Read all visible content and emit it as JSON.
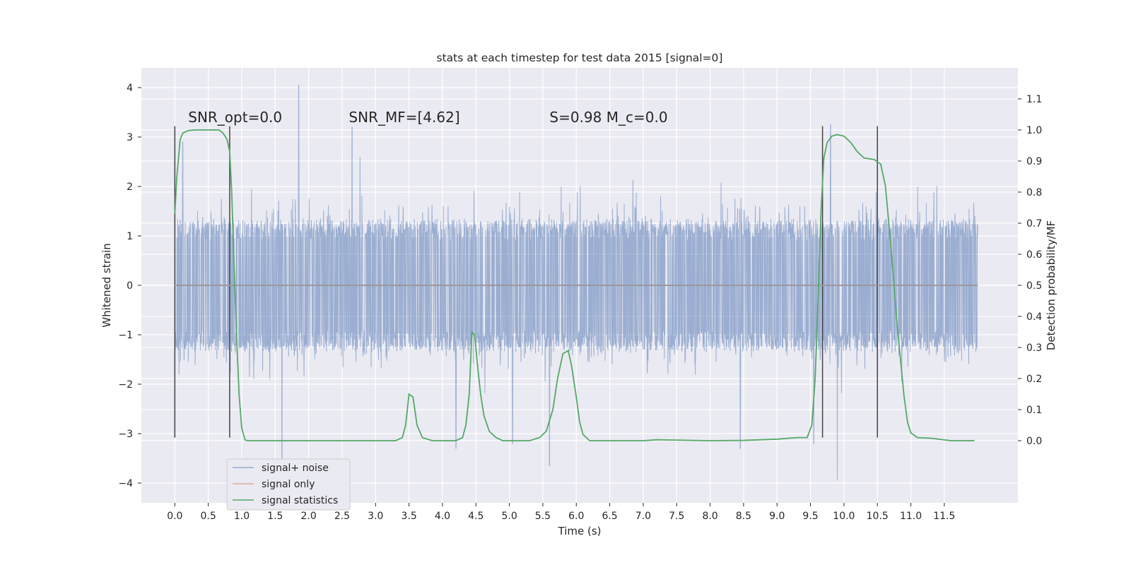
{
  "chart_data": {
    "type": "line",
    "title": "stats at each timestep for test data 2015 [signal=0]",
    "xlabel": "Time (s)",
    "ylabel": "Whitened strain",
    "y2label": "Detection probability/MF",
    "xlim": [
      -0.5,
      12.6
    ],
    "ylim": [
      -4.4,
      4.4
    ],
    "y2lim": [
      -0.2,
      1.2
    ],
    "xticks": [
      0.0,
      0.5,
      1.0,
      1.5,
      2.0,
      2.5,
      3.0,
      3.5,
      4.0,
      4.5,
      5.0,
      5.5,
      6.0,
      6.5,
      7.0,
      7.5,
      8.0,
      8.5,
      9.0,
      9.5,
      10.0,
      10.5,
      11.0,
      11.5
    ],
    "xtick_labels": [
      "0.0",
      "0.5",
      "1.0",
      "1.5",
      "2.0",
      "2.5",
      "3.0",
      "3.5",
      "4.0",
      "4.5",
      "5.0",
      "5.5",
      "6.0",
      "6.5",
      "7.0",
      "7.5",
      "8.0",
      "8.5",
      "9.0",
      "9.5",
      "10.0",
      "10.5",
      "11.0",
      "11.5"
    ],
    "yticks": [
      -4,
      -3,
      -2,
      -1,
      0,
      1,
      2,
      3,
      4
    ],
    "ytick_labels": [
      "−4",
      "−3",
      "−2",
      "−1",
      "0",
      "1",
      "2",
      "3",
      "4"
    ],
    "y2ticks": [
      0.0,
      0.1,
      0.2,
      0.3,
      0.4,
      0.5,
      0.6,
      0.7,
      0.8,
      0.9,
      1.0,
      1.1
    ],
    "y2tick_labels": [
      "0.0",
      "0.1",
      "0.2",
      "0.3",
      "0.4",
      "0.5",
      "0.6",
      "0.7",
      "0.8",
      "0.9",
      "1.0",
      "1.1"
    ],
    "grid": true,
    "legend_position": "lower-left",
    "annotations": [
      {
        "text": "SNR_opt=0.0",
        "x": 0.2,
        "y": 3.3
      },
      {
        "text": "SNR_MF=[4.62]",
        "x": 2.6,
        "y": 3.3
      },
      {
        "text": "S=0.98   M_c=0.0",
        "x": 5.6,
        "y": 3.3
      }
    ],
    "vertical_markers": [
      {
        "x": 0.0,
        "ymin": -3.08,
        "ymax": 3.22
      },
      {
        "x": 0.82,
        "ymin": -3.08,
        "ymax": 3.22
      },
      {
        "x": 9.68,
        "ymin": -3.08,
        "ymax": 3.22
      },
      {
        "x": 10.5,
        "ymin": -3.08,
        "ymax": 3.22
      }
    ],
    "series": [
      {
        "name": "signal+ noise",
        "color": "#4c72b0",
        "axis": "left",
        "kind": "noise",
        "x_range": [
          0.0,
          12.0
        ],
        "core_amplitude": 1.35,
        "peaks": [
          [
            0.0,
            -3.05
          ],
          [
            1.85,
            4.05
          ],
          [
            1.6,
            -3.5
          ],
          [
            4.2,
            -3.3
          ],
          [
            5.05,
            -3.2
          ],
          [
            5.6,
            -3.65
          ],
          [
            8.45,
            -3.3
          ],
          [
            9.8,
            3.25
          ],
          [
            9.9,
            -3.95
          ],
          [
            9.55,
            -3.2
          ],
          [
            2.65,
            3.2
          ],
          [
            0.12,
            2.9
          ]
        ]
      },
      {
        "name": "signal only",
        "color": "#dd8452",
        "axis": "left",
        "kind": "flat",
        "x": [
          0.0,
          12.0
        ],
        "values": [
          0.0,
          0.0
        ]
      },
      {
        "name": "signal statistics",
        "color": "#55a868",
        "axis": "right",
        "kind": "line",
        "x": [
          0.0,
          0.03,
          0.08,
          0.12,
          0.2,
          0.3,
          0.4,
          0.5,
          0.6,
          0.66,
          0.72,
          0.78,
          0.82,
          0.85,
          0.88,
          0.92,
          0.96,
          1.0,
          1.05,
          1.1,
          1.3,
          1.5,
          1.7,
          1.9,
          2.2,
          2.6,
          3.0,
          3.3,
          3.4,
          3.45,
          3.5,
          3.56,
          3.62,
          3.7,
          3.85,
          4.0,
          4.2,
          4.3,
          4.35,
          4.4,
          4.44,
          4.48,
          4.52,
          4.57,
          4.62,
          4.7,
          4.8,
          4.9,
          5.1,
          5.3,
          5.45,
          5.55,
          5.65,
          5.72,
          5.8,
          5.88,
          5.93,
          6.0,
          6.05,
          6.1,
          6.2,
          6.4,
          6.8,
          7.0,
          7.2,
          7.5,
          8.0,
          8.5,
          9.0,
          9.3,
          9.45,
          9.52,
          9.57,
          9.62,
          9.66,
          9.7,
          9.75,
          9.82,
          9.9,
          10.0,
          10.1,
          10.2,
          10.3,
          10.45,
          10.55,
          10.62,
          10.7,
          10.8,
          10.9,
          10.95,
          11.0,
          11.1,
          11.3,
          11.6,
          11.95
        ],
        "values": [
          0.73,
          0.85,
          0.97,
          0.99,
          0.998,
          1.0,
          1.0,
          1.0,
          1.0,
          1.0,
          0.99,
          0.97,
          0.93,
          0.8,
          0.6,
          0.35,
          0.15,
          0.04,
          0.002,
          0.0,
          0.0,
          0.0,
          0.0,
          0.0,
          0.0,
          0.0,
          0.0,
          0.0,
          0.01,
          0.05,
          0.15,
          0.14,
          0.05,
          0.01,
          0.0,
          0.0,
          0.0,
          0.01,
          0.05,
          0.15,
          0.35,
          0.34,
          0.25,
          0.15,
          0.08,
          0.03,
          0.01,
          0.0,
          0.0,
          0.0,
          0.01,
          0.03,
          0.1,
          0.2,
          0.28,
          0.29,
          0.24,
          0.14,
          0.06,
          0.02,
          0.0,
          0.0,
          0.0,
          0.0,
          0.003,
          0.002,
          0.0,
          0.001,
          0.005,
          0.01,
          0.01,
          0.05,
          0.2,
          0.5,
          0.75,
          0.91,
          0.96,
          0.98,
          0.985,
          0.98,
          0.96,
          0.93,
          0.91,
          0.905,
          0.89,
          0.82,
          0.63,
          0.36,
          0.14,
          0.06,
          0.025,
          0.01,
          0.008,
          0.0,
          0.0
        ]
      }
    ]
  }
}
